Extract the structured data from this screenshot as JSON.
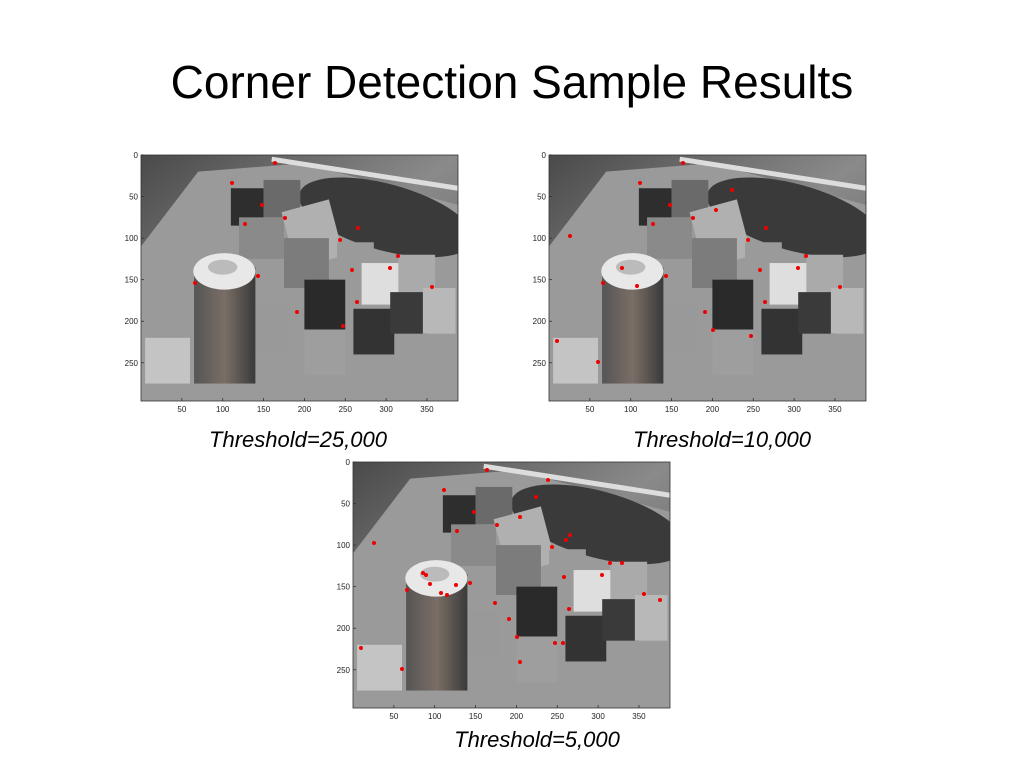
{
  "title": "Corner Detection Sample Results",
  "axes": {
    "xlim": [
      0,
      388
    ],
    "ylim": [
      0,
      296
    ],
    "xticks": [
      50,
      100,
      150,
      200,
      250,
      300,
      350
    ],
    "yticks": [
      0,
      50,
      100,
      150,
      200,
      250
    ]
  },
  "panels": [
    {
      "caption": "Threshold=25,000"
    },
    {
      "caption": "Threshold=10,000"
    },
    {
      "caption": "Threshold=5,000"
    }
  ]
}
